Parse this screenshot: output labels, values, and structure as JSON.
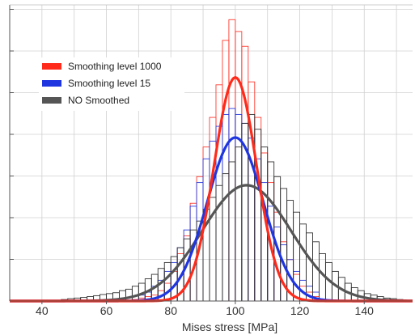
{
  "chart_data": {
    "type": "histogram",
    "xlabel": "Mises stress [MPa]",
    "ylabel": "",
    "title": "",
    "xlim": [
      30,
      155
    ],
    "ylim": [
      0,
      1
    ],
    "x_ticks": [
      40,
      60,
      80,
      100,
      120,
      140
    ],
    "y_tick_labels_shown": false,
    "grid": true,
    "legend_position": "top-left",
    "bin_width": 2,
    "histograms": [
      {
        "series": "Smoothing level 1000",
        "color": "#ff3b2f",
        "bins": [
          [
            68,
            0.005
          ],
          [
            70,
            0.01
          ],
          [
            72,
            0.015
          ],
          [
            74,
            0.02
          ],
          [
            76,
            0.035
          ],
          [
            78,
            0.06
          ],
          [
            80,
            0.1
          ],
          [
            82,
            0.16
          ],
          [
            84,
            0.22
          ],
          [
            86,
            0.33
          ],
          [
            88,
            0.42
          ],
          [
            90,
            0.52
          ],
          [
            92,
            0.62
          ],
          [
            94,
            0.73
          ],
          [
            96,
            0.88
          ],
          [
            98,
            0.95
          ],
          [
            100,
            0.91
          ],
          [
            102,
            0.86
          ],
          [
            104,
            0.74
          ],
          [
            106,
            0.62
          ],
          [
            108,
            0.5
          ],
          [
            110,
            0.4
          ],
          [
            112,
            0.3
          ],
          [
            114,
            0.2
          ],
          [
            116,
            0.14
          ],
          [
            118,
            0.09
          ],
          [
            120,
            0.05
          ],
          [
            122,
            0.03
          ],
          [
            124,
            0.015
          ],
          [
            126,
            0.005
          ]
        ]
      },
      {
        "series": "Smoothing level 15",
        "color": "#2b3cd8",
        "bins": [
          [
            70,
            0.02
          ],
          [
            72,
            0.03
          ],
          [
            74,
            0.05
          ],
          [
            76,
            0.07
          ],
          [
            78,
            0.1
          ],
          [
            80,
            0.13
          ],
          [
            82,
            0.18
          ],
          [
            84,
            0.24
          ],
          [
            86,
            0.32
          ],
          [
            88,
            0.4
          ],
          [
            90,
            0.48
          ],
          [
            92,
            0.54
          ],
          [
            94,
            0.59
          ],
          [
            96,
            0.63
          ],
          [
            98,
            0.65
          ],
          [
            100,
            0.63
          ],
          [
            102,
            0.6
          ],
          [
            104,
            0.55
          ],
          [
            106,
            0.48
          ],
          [
            108,
            0.4
          ],
          [
            110,
            0.32
          ],
          [
            112,
            0.25
          ],
          [
            114,
            0.19
          ],
          [
            116,
            0.14
          ],
          [
            118,
            0.1
          ],
          [
            120,
            0.07
          ],
          [
            122,
            0.05
          ],
          [
            124,
            0.03
          ]
        ]
      },
      {
        "series": "NO Smoothed",
        "color": "#333333",
        "bins": [
          [
            46,
            0.005
          ],
          [
            48,
            0.008
          ],
          [
            50,
            0.01
          ],
          [
            52,
            0.012
          ],
          [
            54,
            0.015
          ],
          [
            56,
            0.018
          ],
          [
            58,
            0.022
          ],
          [
            60,
            0.025
          ],
          [
            62,
            0.028
          ],
          [
            64,
            0.035
          ],
          [
            66,
            0.04
          ],
          [
            68,
            0.05
          ],
          [
            70,
            0.06
          ],
          [
            72,
            0.075
          ],
          [
            74,
            0.09
          ],
          [
            76,
            0.11
          ],
          [
            78,
            0.13
          ],
          [
            80,
            0.15
          ],
          [
            82,
            0.18
          ],
          [
            84,
            0.21
          ],
          [
            86,
            0.24
          ],
          [
            88,
            0.27
          ],
          [
            90,
            0.31
          ],
          [
            92,
            0.35
          ],
          [
            94,
            0.39
          ],
          [
            96,
            0.43
          ],
          [
            98,
            0.47
          ],
          [
            100,
            0.52
          ],
          [
            102,
            0.6
          ],
          [
            104,
            0.63
          ],
          [
            106,
            0.58
          ],
          [
            108,
            0.52
          ],
          [
            110,
            0.47
          ],
          [
            112,
            0.42
          ],
          [
            114,
            0.38
          ],
          [
            116,
            0.34
          ],
          [
            118,
            0.3
          ],
          [
            120,
            0.26
          ],
          [
            122,
            0.23
          ],
          [
            124,
            0.2
          ],
          [
            126,
            0.16
          ],
          [
            128,
            0.13
          ],
          [
            130,
            0.1
          ],
          [
            132,
            0.08
          ],
          [
            134,
            0.06
          ],
          [
            136,
            0.045
          ],
          [
            138,
            0.035
          ],
          [
            140,
            0.025
          ],
          [
            142,
            0.02
          ],
          [
            144,
            0.015
          ],
          [
            146,
            0.01
          ],
          [
            148,
            0.008
          ],
          [
            150,
            0.005
          ]
        ]
      }
    ],
    "series": [
      {
        "name": "Smoothing level 1000",
        "color": "#ff2a1a",
        "mean": 100,
        "std": 6.6,
        "peak": 0.755
      },
      {
        "name": "Smoothing level 15",
        "color": "#1f35e0",
        "mean": 100,
        "std": 8.7,
        "peak": 0.552
      },
      {
        "name": "NO Smoothed",
        "color": "#555555",
        "mean": 103.5,
        "std": 13.8,
        "peak": 0.391
      }
    ]
  }
}
